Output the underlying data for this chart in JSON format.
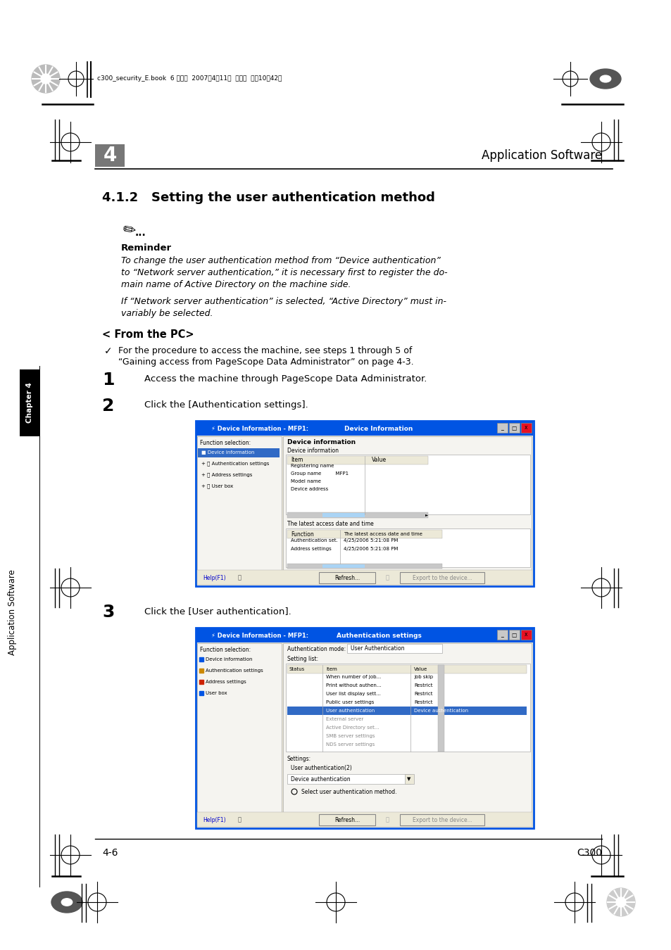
{
  "page_bg": "#ffffff",
  "header_text": "c300_security_E.book  6 ページ  2007年4月11日  水曜日  午前10時42分",
  "chapter_num": "4",
  "chapter_label": "Application Software",
  "section_title": "4.1.2   Setting the user authentication method",
  "reminder_label": "Reminder",
  "reminder_text1": "To change the user authentication method from “Device authentication”",
  "reminder_text2": "to “Network server authentication,” it is necessary first to register the do-",
  "reminder_text3": "main name of Active Directory on the machine side.",
  "reminder_text4": "If “Network server authentication” is selected, “Active Directory” must in-",
  "reminder_text5": "variably be selected.",
  "from_pc": "< From the PC>",
  "check_text1": "For the procedure to access the machine, see steps 1 through 5 of",
  "check_text2": "“Gaining access from PageScope Data Administrator” on page 4-3.",
  "step1_num": "1",
  "step1_text": "Access the machine through PageScope Data Administrator.",
  "step2_num": "2",
  "step2_text": "Click the [Authentication settings].",
  "step3_num": "3",
  "step3_text": "Click the [User authentication].",
  "footer_left": "4-6",
  "footer_right": "C300",
  "sidebar_chapter": "Chapter 4",
  "sidebar_app": "Application Software"
}
